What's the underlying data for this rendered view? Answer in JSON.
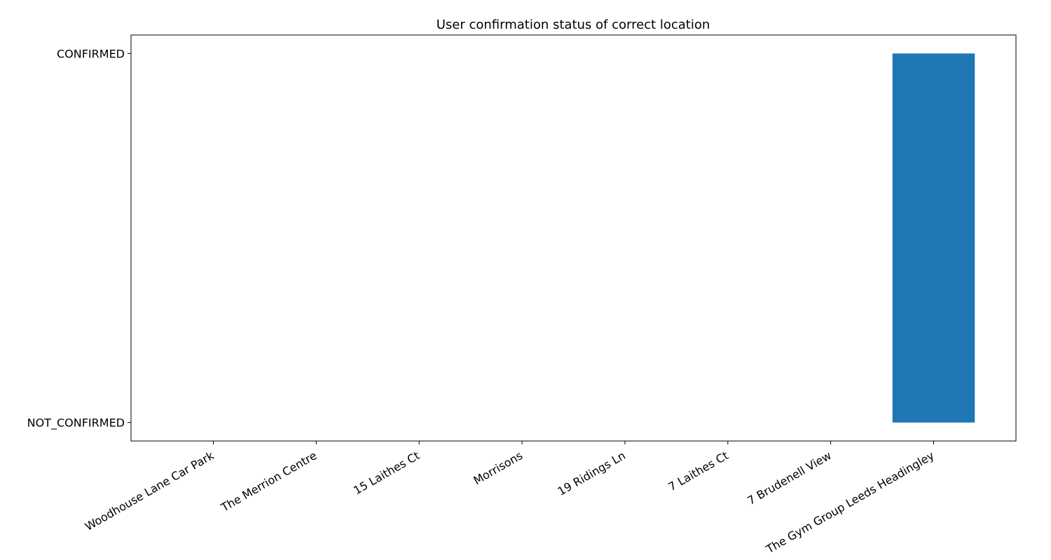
{
  "chart_data": {
    "type": "bar",
    "title": "User confirmation status of correct location",
    "xlabel": "",
    "ylabel": "",
    "categories": [
      "Woodhouse Lane Car Park",
      "The Merrion Centre",
      "15 Laithes Ct",
      "Morrisons",
      "19 Ridings Ln",
      "7 Laithes Ct",
      "7 Brudenell View",
      "The Gym Group Leeds Headingley"
    ],
    "values": [
      0,
      0,
      0,
      0,
      0,
      0,
      0,
      1
    ],
    "y_ticks": [
      {
        "value": 0,
        "label": "NOT_CONFIRMED"
      },
      {
        "value": 1,
        "label": "CONFIRMED"
      }
    ],
    "ylim": [
      -0.05,
      1.05
    ],
    "grid": false,
    "bar_color": "#1f77b4"
  }
}
